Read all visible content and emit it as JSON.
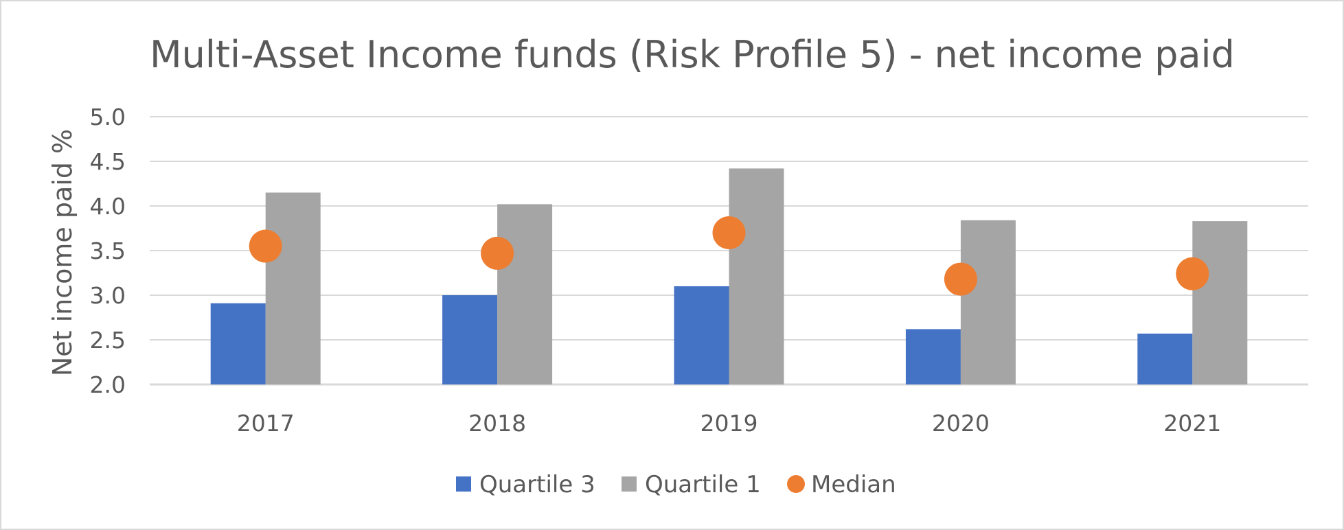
{
  "chart_data": {
    "type": "bar",
    "title": "Multi-Asset Income funds (Risk Profile 5) - net income paid",
    "ylabel": "Net income paid %",
    "xlabel": "",
    "categories": [
      "2017",
      "2018",
      "2019",
      "2020",
      "2021"
    ],
    "ylim": [
      2.0,
      5.0
    ],
    "yticks": [
      "2.0",
      "2.5",
      "3.0",
      "3.5",
      "4.0",
      "4.5",
      "5.0"
    ],
    "grid": true,
    "legend_position": "bottom",
    "series": [
      {
        "name": "Quartile 3",
        "kind": "bar",
        "color": "#4472c4",
        "values": [
          2.91,
          3.0,
          3.1,
          2.62,
          2.57
        ]
      },
      {
        "name": "Quartile 1",
        "kind": "bar",
        "color": "#a5a5a5",
        "values": [
          4.15,
          4.02,
          4.42,
          3.84,
          3.83
        ]
      },
      {
        "name": "Median",
        "kind": "scatter",
        "color": "#ed7d31",
        "values": [
          3.55,
          3.47,
          3.7,
          3.18,
          3.24
        ]
      }
    ]
  }
}
